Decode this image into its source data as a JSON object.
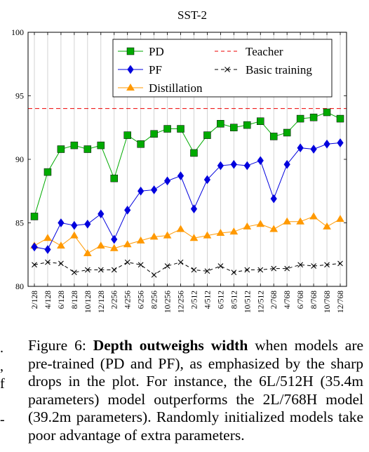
{
  "chart_data": {
    "type": "line",
    "title": "SST-2",
    "xlabel": "",
    "ylabel": "",
    "ylim": [
      80,
      100
    ],
    "yticks": [
      80,
      85,
      90,
      95,
      100
    ],
    "grid": "vertical",
    "legend_position": "top-right",
    "categories": [
      "2/128",
      "4/128",
      "6/128",
      "8/128",
      "10/128",
      "12/128",
      "2/256",
      "4/256",
      "6/256",
      "8/256",
      "10/256",
      "12/256",
      "2/512",
      "4/512",
      "6/512",
      "8/512",
      "10/512",
      "12/512",
      "2/768",
      "4/768",
      "6/768",
      "8/768",
      "10/768",
      "12/768"
    ],
    "series": [
      {
        "name": "PD",
        "color": "#00aa00",
        "marker": "square",
        "style": "solid",
        "values": [
          85.5,
          89.0,
          90.8,
          91.1,
          90.8,
          91.1,
          88.5,
          91.9,
          91.2,
          92.0,
          92.4,
          92.4,
          90.5,
          91.9,
          92.8,
          92.5,
          92.7,
          93.0,
          91.8,
          92.1,
          93.2,
          93.3,
          93.7,
          93.2
        ]
      },
      {
        "name": "PF",
        "color": "#0000dd",
        "marker": "diamond",
        "style": "solid",
        "values": [
          83.1,
          82.9,
          85.0,
          84.8,
          84.9,
          85.7,
          83.7,
          86.0,
          87.5,
          87.6,
          88.3,
          88.7,
          86.1,
          88.4,
          89.5,
          89.6,
          89.5,
          89.9,
          86.9,
          89.6,
          90.9,
          90.8,
          91.2,
          91.3
        ]
      },
      {
        "name": "Distillation",
        "color": "#ff9900",
        "marker": "triangle",
        "style": "solid",
        "values": [
          83.2,
          83.8,
          83.2,
          84.0,
          82.6,
          83.2,
          83.0,
          83.3,
          83.6,
          83.9,
          84.0,
          84.5,
          83.8,
          84.0,
          84.2,
          84.3,
          84.7,
          84.9,
          84.5,
          85.1,
          85.1,
          85.5,
          84.7,
          85.3
        ]
      },
      {
        "name": "Teacher",
        "color": "#ee0000",
        "marker": "none",
        "style": "dashed",
        "values": [
          94.0,
          94.0,
          94.0,
          94.0,
          94.0,
          94.0,
          94.0,
          94.0,
          94.0,
          94.0,
          94.0,
          94.0,
          94.0,
          94.0,
          94.0,
          94.0,
          94.0,
          94.0,
          94.0,
          94.0,
          94.0,
          94.0,
          94.0,
          94.0
        ]
      },
      {
        "name": "Basic training",
        "color": "#000000",
        "marker": "cross",
        "style": "dashed",
        "values": [
          81.7,
          81.9,
          81.8,
          81.1,
          81.3,
          81.3,
          81.3,
          81.9,
          81.7,
          80.9,
          81.6,
          81.9,
          81.3,
          81.2,
          81.6,
          81.1,
          81.3,
          81.3,
          81.4,
          81.4,
          81.7,
          81.6,
          81.7,
          81.8
        ]
      }
    ]
  },
  "caption": {
    "label": "Figure 6:",
    "bold": "Depth outweighs width",
    "text": " when models are pre-trained (PD and PF), as emphasized by the sharp drops in the plot. For instance, the 6L/512H (35.4m parameters) model outperforms the 2L/768H model (39.2m parameters). Randomly initialized models take poor advantage of extra parameters."
  },
  "margin_fragments": [
    ".",
    ",",
    "f",
    "",
    "-"
  ]
}
